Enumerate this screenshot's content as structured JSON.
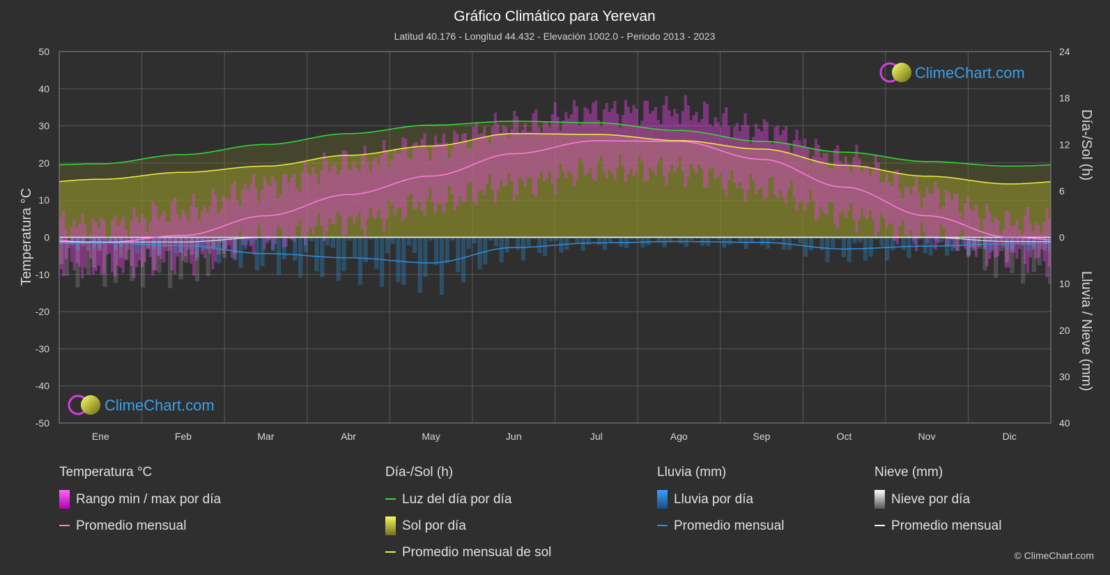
{
  "header": {
    "title": "Gráfico Climático para Yerevan",
    "subtitle": "Latitud 40.176 - Longitud 44.432 - Elevación 1002.0 - Periodo 2013 - 2023"
  },
  "brand": {
    "top": "ClimeChart.com",
    "bottom": "ClimeChart.com",
    "copyright": "© ClimeChart.com"
  },
  "colors": {
    "background": "#2f2f2f",
    "grid": "#5a5a5a",
    "temp_range": "#e040e0",
    "temp_avg": "#ff7de0",
    "daylight": "#33dd33",
    "sun_fill": "#a8a830",
    "sun_avg": "#f0f040",
    "rain": "#2a8fd8",
    "rain_avg": "#2f8fe0",
    "snow": "#bfbfbf",
    "snow_avg": "#ffffff"
  },
  "chart_data": {
    "type": "area",
    "categories": [
      "Ene",
      "Feb",
      "Mar",
      "Abr",
      "May",
      "Jun",
      "Jul",
      "Ago",
      "Sep",
      "Oct",
      "Nov",
      "Dic"
    ],
    "left_axis": {
      "label": "Temperatura °C",
      "range": [
        -50,
        50
      ],
      "ticks": [
        "50",
        "40",
        "30",
        "20",
        "10",
        "0",
        "-10",
        "-20",
        "-30",
        "-40",
        "-50"
      ]
    },
    "right_axis_top": {
      "label": "Día-/Sol (h)",
      "range": [
        0,
        24
      ],
      "ticks": [
        "24",
        "18",
        "12",
        "6",
        "0"
      ]
    },
    "right_axis_bottom": {
      "label": "Lluvia / Nieve (mm)",
      "range": [
        0,
        40
      ],
      "ticks": [
        "10",
        "20",
        "30",
        "40"
      ]
    },
    "series": {
      "temp_avg_c": [
        -1.5,
        0.5,
        5.8,
        11.5,
        16.5,
        22.5,
        26.0,
        25.8,
        21.0,
        13.5,
        5.8,
        0.0
      ],
      "temp_max_c": [
        3,
        7,
        14,
        20,
        25,
        30,
        34,
        34,
        29,
        21,
        12,
        4
      ],
      "temp_min_c": [
        -8,
        -6,
        -1,
        4,
        9,
        14,
        18,
        18,
        13,
        6,
        0,
        -5
      ],
      "daylight_h": [
        9.5,
        10.7,
        12.0,
        13.4,
        14.5,
        15.0,
        14.8,
        13.8,
        12.4,
        11.0,
        9.8,
        9.2
      ],
      "sun_avg_h": [
        7.5,
        8.4,
        9.2,
        10.6,
        11.8,
        13.4,
        13.3,
        12.5,
        11.4,
        9.3,
        7.9,
        6.9
      ],
      "rain_avg_mm": [
        1.2,
        1.8,
        3.5,
        4.4,
        5.5,
        2.2,
        1.2,
        0.9,
        1.1,
        2.5,
        1.9,
        1.4
      ],
      "snow_avg_mm": [
        1.0,
        1.0,
        0.0,
        0.0,
        0.0,
        0.0,
        0.0,
        0.0,
        0.0,
        0.0,
        0.0,
        0.9
      ]
    },
    "grid": true
  },
  "legend": [
    {
      "heading": "Temperatura °C",
      "items": [
        {
          "kind": "swatch",
          "color_key": "temp_range",
          "label": "Rango min / max por día"
        },
        {
          "kind": "line",
          "color_key": "temp_avg",
          "label": "Promedio mensual"
        }
      ]
    },
    {
      "heading": "Día-/Sol (h)",
      "items": [
        {
          "kind": "line",
          "color_key": "daylight",
          "label": "Luz del día por día"
        },
        {
          "kind": "swatch",
          "color_key": "sun_avg",
          "label": "Sol por día"
        },
        {
          "kind": "line",
          "color_key": "sun_avg",
          "label": "Promedio mensual de sol"
        }
      ]
    },
    {
      "heading": "Lluvia (mm)",
      "items": [
        {
          "kind": "swatch",
          "color_key": "rain",
          "label": "Lluvia por día"
        },
        {
          "kind": "line",
          "color_key": "rain_avg",
          "label": "Promedio mensual"
        }
      ]
    },
    {
      "heading": "Nieve (mm)",
      "items": [
        {
          "kind": "swatch",
          "color_key": "snow",
          "label": "Nieve por día"
        },
        {
          "kind": "line",
          "color_key": "snow_avg",
          "label": "Promedio mensual"
        }
      ]
    }
  ]
}
